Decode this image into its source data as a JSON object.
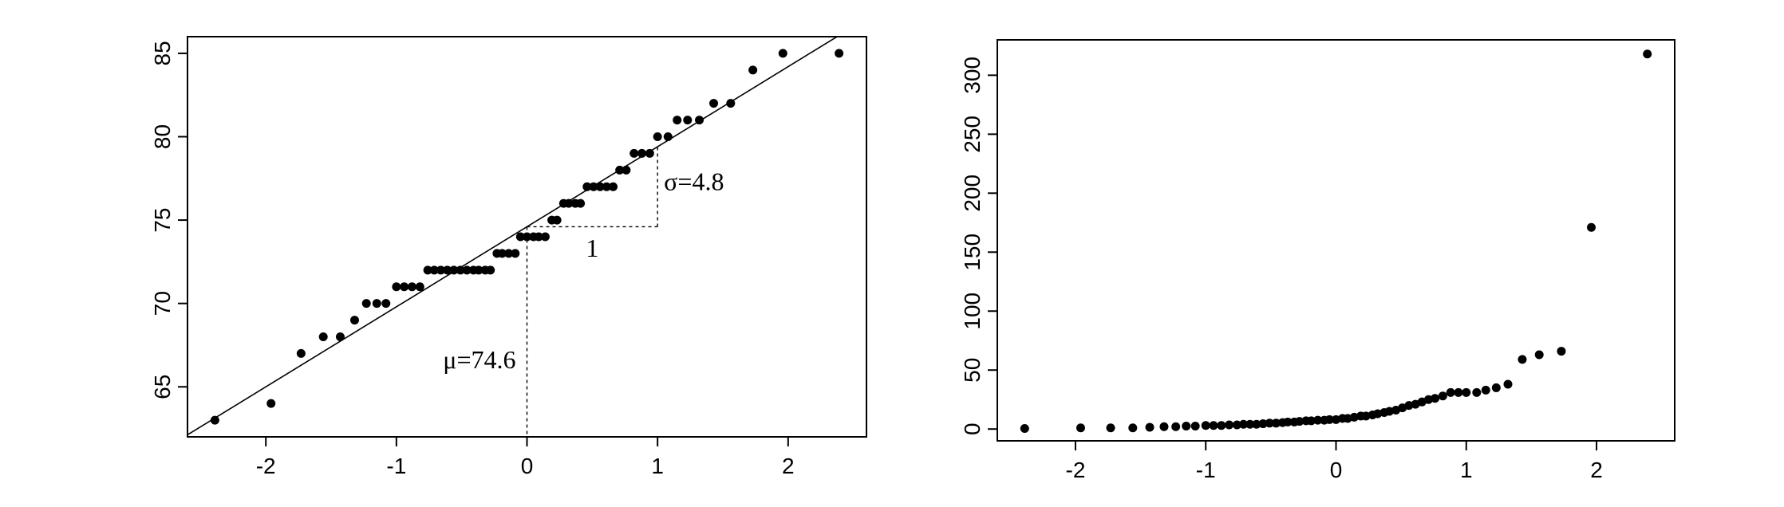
{
  "chart_data": [
    {
      "type": "scatter",
      "title": "",
      "xlabel": "",
      "ylabel": "",
      "xlim": [
        -2.6,
        2.6
      ],
      "ylim": [
        62,
        86
      ],
      "xticks": [
        -2,
        -1,
        0,
        1,
        2
      ],
      "yticks": [
        65,
        70,
        75,
        80,
        85
      ],
      "x_tick_labels": [
        "-2",
        "-1",
        "0",
        "1",
        "2"
      ],
      "y_tick_labels": [
        "65",
        "70",
        "75",
        "80",
        "85"
      ],
      "grid": false,
      "line": {
        "intercept": 74.6,
        "slope": 4.8
      },
      "annotations": {
        "mu": "μ=74.6",
        "sigma": "σ=4.8",
        "unit": "1"
      },
      "points": [
        [
          -2.39,
          63
        ],
        [
          -1.96,
          64
        ],
        [
          -1.73,
          67
        ],
        [
          -1.56,
          68
        ],
        [
          -1.43,
          68
        ],
        [
          -1.32,
          69
        ],
        [
          -1.23,
          70
        ],
        [
          -1.15,
          70
        ],
        [
          -1.08,
          70
        ],
        [
          -1.0,
          71
        ],
        [
          -0.94,
          71
        ],
        [
          -0.88,
          71
        ],
        [
          -0.82,
          71
        ],
        [
          -0.76,
          72
        ],
        [
          -0.71,
          72
        ],
        [
          -0.66,
          72
        ],
        [
          -0.61,
          72
        ],
        [
          -0.56,
          72
        ],
        [
          -0.51,
          72
        ],
        [
          -0.46,
          72
        ],
        [
          -0.41,
          72
        ],
        [
          -0.37,
          72
        ],
        [
          -0.32,
          72
        ],
        [
          -0.28,
          72
        ],
        [
          -0.23,
          73
        ],
        [
          -0.19,
          73
        ],
        [
          -0.14,
          73
        ],
        [
          -0.09,
          73
        ],
        [
          -0.05,
          74
        ],
        [
          0.0,
          74
        ],
        [
          0.05,
          74
        ],
        [
          0.09,
          74
        ],
        [
          0.14,
          74
        ],
        [
          0.19,
          75
        ],
        [
          0.23,
          75
        ],
        [
          0.28,
          76
        ],
        [
          0.32,
          76
        ],
        [
          0.37,
          76
        ],
        [
          0.41,
          76
        ],
        [
          0.46,
          77
        ],
        [
          0.51,
          77
        ],
        [
          0.56,
          77
        ],
        [
          0.61,
          77
        ],
        [
          0.66,
          77
        ],
        [
          0.71,
          78
        ],
        [
          0.76,
          78
        ],
        [
          0.82,
          79
        ],
        [
          0.88,
          79
        ],
        [
          0.94,
          79
        ],
        [
          1.0,
          80
        ],
        [
          1.08,
          80
        ],
        [
          1.15,
          81
        ],
        [
          1.23,
          81
        ],
        [
          1.32,
          81
        ],
        [
          1.43,
          82
        ],
        [
          1.56,
          82
        ],
        [
          1.73,
          84
        ],
        [
          1.96,
          85
        ],
        [
          2.39,
          85
        ]
      ]
    },
    {
      "type": "scatter",
      "title": "",
      "xlabel": "",
      "ylabel": "",
      "xlim": [
        -2.6,
        2.6
      ],
      "ylim": [
        -10,
        330
      ],
      "xticks": [
        -2,
        -1,
        0,
        1,
        2
      ],
      "yticks": [
        0,
        50,
        100,
        150,
        200,
        250,
        300
      ],
      "x_tick_labels": [
        "-2",
        "-1",
        "0",
        "1",
        "2"
      ],
      "y_tick_labels": [
        "0",
        "50",
        "100",
        "150",
        "200",
        "250",
        "300"
      ],
      "grid": false,
      "points": [
        [
          -2.39,
          0.5
        ],
        [
          -1.96,
          1
        ],
        [
          -1.73,
          1
        ],
        [
          -1.56,
          1
        ],
        [
          -1.43,
          1.5
        ],
        [
          -1.32,
          2
        ],
        [
          -1.23,
          2
        ],
        [
          -1.15,
          2.5
        ],
        [
          -1.08,
          2.5
        ],
        [
          -1.0,
          3
        ],
        [
          -0.94,
          3
        ],
        [
          -0.88,
          3
        ],
        [
          -0.82,
          3.5
        ],
        [
          -0.76,
          3.5
        ],
        [
          -0.71,
          4
        ],
        [
          -0.66,
          4
        ],
        [
          -0.61,
          4
        ],
        [
          -0.56,
          4.5
        ],
        [
          -0.51,
          5
        ],
        [
          -0.46,
          5
        ],
        [
          -0.41,
          5.5
        ],
        [
          -0.37,
          6
        ],
        [
          -0.32,
          6
        ],
        [
          -0.28,
          6.5
        ],
        [
          -0.23,
          7
        ],
        [
          -0.19,
          7
        ],
        [
          -0.14,
          7.5
        ],
        [
          -0.09,
          7.5
        ],
        [
          -0.05,
          8
        ],
        [
          0.0,
          8
        ],
        [
          0.05,
          9
        ],
        [
          0.09,
          9
        ],
        [
          0.14,
          10
        ],
        [
          0.19,
          11
        ],
        [
          0.23,
          11
        ],
        [
          0.28,
          12
        ],
        [
          0.32,
          13
        ],
        [
          0.37,
          14
        ],
        [
          0.41,
          15
        ],
        [
          0.46,
          16
        ],
        [
          0.51,
          18
        ],
        [
          0.56,
          20
        ],
        [
          0.61,
          21
        ],
        [
          0.66,
          23
        ],
        [
          0.71,
          25
        ],
        [
          0.76,
          26
        ],
        [
          0.82,
          28
        ],
        [
          0.88,
          31
        ],
        [
          0.94,
          31
        ],
        [
          1.0,
          31
        ],
        [
          1.08,
          31
        ],
        [
          1.15,
          33
        ],
        [
          1.23,
          35
        ],
        [
          1.32,
          38
        ],
        [
          1.43,
          59
        ],
        [
          1.56,
          63
        ],
        [
          1.73,
          66
        ],
        [
          1.96,
          171
        ],
        [
          2.39,
          318
        ]
      ]
    }
  ]
}
